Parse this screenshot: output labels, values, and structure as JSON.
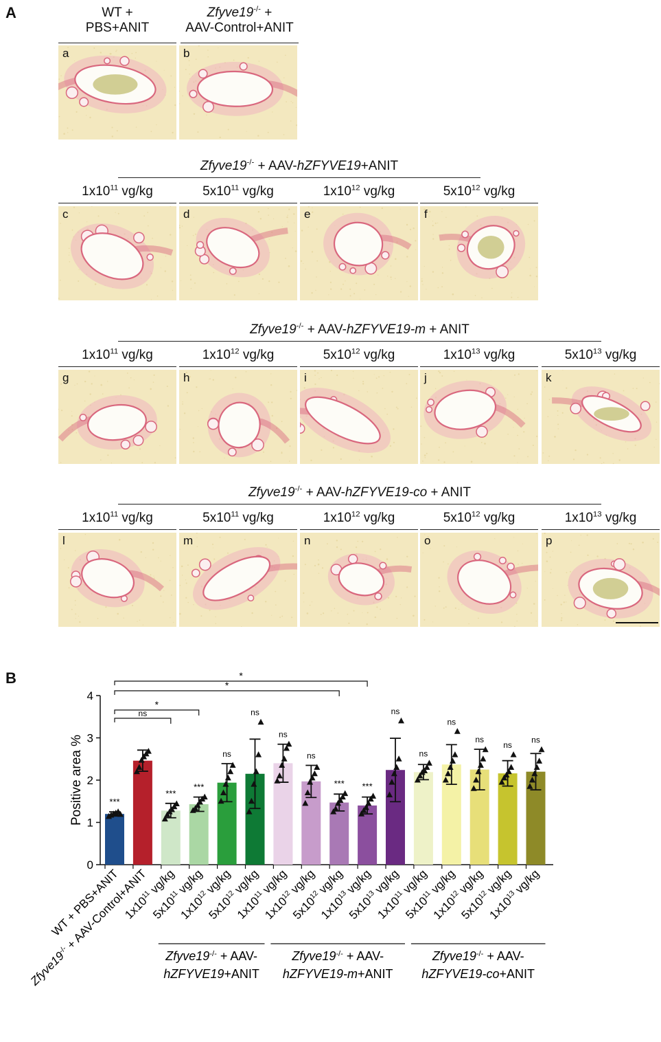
{
  "panel_labels": {
    "A": "A",
    "B": "B"
  },
  "row1": {
    "group1": [
      "WT +",
      "PBS+ANIT"
    ],
    "group2": [
      "Zfyve19",
      "-/-",
      " +",
      "AAV-Control+ANIT"
    ],
    "tiles": [
      "a",
      "b"
    ]
  },
  "row2": {
    "header": [
      "Zfyve19",
      "-/-",
      " + AAV-",
      "hZFYVE19",
      "+ANIT"
    ],
    "doses": [
      [
        "1x10",
        "11",
        " vg/kg"
      ],
      [
        "5x10",
        "11",
        " vg/kg"
      ],
      [
        "1x10",
        "12",
        " vg/kg"
      ],
      [
        "5x10",
        "12",
        " vg/kg"
      ]
    ],
    "tiles": [
      "c",
      "d",
      "e",
      "f"
    ]
  },
  "row3": {
    "header": [
      "Zfyve19",
      "-/-",
      " + AAV-",
      "hZFYVE19-m",
      " + ANIT"
    ],
    "doses": [
      [
        "1x10",
        "11",
        " vg/kg"
      ],
      [
        "1x10",
        "12",
        " vg/kg"
      ],
      [
        "5x10",
        "12",
        " vg/kg"
      ],
      [
        "1x10",
        "13",
        " vg/kg"
      ],
      [
        "5x10",
        "13",
        " vg/kg"
      ]
    ],
    "tiles": [
      "g",
      "h",
      "i",
      "j",
      "k"
    ]
  },
  "row4": {
    "header": [
      "Zfyve19",
      "-/-",
      " + AAV-",
      "hZFYVE19-co",
      " + ANIT"
    ],
    "doses": [
      [
        "1x10",
        "11",
        " vg/kg"
      ],
      [
        "5x10",
        "11",
        " vg/kg"
      ],
      [
        "1x10",
        "12",
        " vg/kg"
      ],
      [
        "5x10",
        "12",
        " vg/kg"
      ],
      [
        "1x10",
        "13",
        " vg/kg"
      ]
    ],
    "tiles": [
      "l",
      "m",
      "n",
      "o",
      "p"
    ]
  },
  "colors": {
    "tissue_bg": "#f3e8bf",
    "stain": "#d9677e",
    "stain_light": "#efb4bf",
    "lumen": "#fdfcf7",
    "rbc": "#c6c27a"
  },
  "chart_data": {
    "type": "bar",
    "ylabel": "Positive area %",
    "ylim": [
      0,
      4
    ],
    "yticks": [
      "0",
      "1",
      "2",
      "3",
      "4"
    ],
    "categories": [
      [
        "WT + PBS+ANIT"
      ],
      [
        "Zfyve19",
        "-/-",
        " + AAV-Control+ANIT"
      ],
      [
        "1x10",
        "11",
        " vg/kg"
      ],
      [
        "5x10",
        "11",
        " vg/kg"
      ],
      [
        "1x10",
        "12",
        " vg/kg"
      ],
      [
        "5x10",
        "12",
        " vg/kg"
      ],
      [
        "1x10",
        "11",
        " vg/kg"
      ],
      [
        "1x10",
        "12",
        " vg/kg"
      ],
      [
        "5x10",
        "12",
        " vg/kg"
      ],
      [
        "1x10",
        "13",
        " vg/kg"
      ],
      [
        "5x10",
        "13",
        " vg/kg"
      ],
      [
        "1x10",
        "11",
        " vg/kg"
      ],
      [
        "5x10",
        "11",
        " vg/kg"
      ],
      [
        "1x10",
        "12",
        " vg/kg"
      ],
      [
        "5x10",
        "12",
        " vg/kg"
      ],
      [
        "1x10",
        "13",
        " vg/kg"
      ]
    ],
    "values": [
      1.2,
      2.46,
      1.28,
      1.43,
      1.94,
      2.15,
      2.4,
      1.97,
      1.47,
      1.4,
      2.24,
      2.19,
      2.37,
      2.25,
      2.16,
      2.2
    ],
    "errors": [
      0.05,
      0.25,
      0.17,
      0.17,
      0.45,
      0.82,
      0.45,
      0.38,
      0.2,
      0.2,
      0.75,
      0.18,
      0.47,
      0.48,
      0.3,
      0.43
    ],
    "colors": [
      "#1f4e8c",
      "#b5202b",
      "#cfe7c8",
      "#aad7a4",
      "#2a9e3c",
      "#0e7a35",
      "#ead3e8",
      "#c79ccb",
      "#a979b5",
      "#8b4f9e",
      "#6a2a82",
      "#eef2c8",
      "#f4f2a6",
      "#e7df79",
      "#c6c42e",
      "#8e8a28"
    ],
    "points": [
      [
        1.14,
        1.17,
        1.2,
        1.22,
        1.25,
        1.19
      ],
      [
        2.2,
        2.3,
        2.47,
        2.55,
        2.62,
        2.68
      ],
      [
        1.08,
        1.18,
        1.25,
        1.3,
        1.37,
        1.44
      ],
      [
        1.28,
        1.33,
        1.4,
        1.48,
        1.55,
        1.6
      ],
      [
        1.5,
        1.7,
        1.9,
        2.05,
        2.2,
        2.35
      ],
      [
        1.25,
        1.5,
        1.9,
        2.2,
        2.6,
        3.37
      ],
      [
        1.98,
        2.1,
        2.35,
        2.5,
        2.75,
        2.85
      ],
      [
        1.45,
        1.7,
        1.95,
        2.05,
        2.15,
        2.3
      ],
      [
        1.25,
        1.32,
        1.45,
        1.52,
        1.6,
        1.68
      ],
      [
        1.2,
        1.28,
        1.35,
        1.45,
        1.55,
        1.62
      ],
      [
        1.65,
        1.95,
        2.15,
        2.3,
        2.5,
        3.4
      ],
      [
        2.0,
        2.1,
        2.18,
        2.22,
        2.3,
        2.4
      ],
      [
        2.0,
        2.15,
        2.3,
        2.45,
        2.6,
        3.15
      ],
      [
        1.8,
        2.0,
        2.2,
        2.35,
        2.5,
        2.72
      ],
      [
        1.95,
        2.05,
        2.12,
        2.2,
        2.3,
        2.6
      ],
      [
        1.85,
        2.0,
        2.15,
        2.3,
        2.45,
        2.72
      ]
    ],
    "sig_above": [
      "***",
      "",
      "***",
      "***",
      "ns",
      "ns",
      "ns",
      "ns",
      "***",
      "***",
      "ns",
      "ns",
      "ns",
      "ns",
      "ns",
      "ns"
    ],
    "comparisons": [
      {
        "from": 0,
        "to": 9,
        "label": "*"
      },
      {
        "from": 0,
        "to": 8,
        "label": "*"
      },
      {
        "from": 0,
        "to": 3,
        "label": "*"
      },
      {
        "from": 0,
        "to": 2,
        "label": "ns"
      }
    ],
    "groups": [
      {
        "line1": [
          "Zfyve19",
          "-/-",
          " + AAV-"
        ],
        "line2": [
          "hZFYVE19",
          "+ANIT"
        ],
        "from": 2,
        "to": 5
      },
      {
        "line1": [
          "Zfyve19",
          "-/-",
          " + AAV-"
        ],
        "line2": [
          "hZFYVE19-m",
          "+ANIT"
        ],
        "from": 6,
        "to": 10
      },
      {
        "line1": [
          "Zfyve19",
          "-/-",
          " + AAV-"
        ],
        "line2": [
          "hZFYVE19-co",
          "+ANIT"
        ],
        "from": 11,
        "to": 15
      }
    ]
  }
}
